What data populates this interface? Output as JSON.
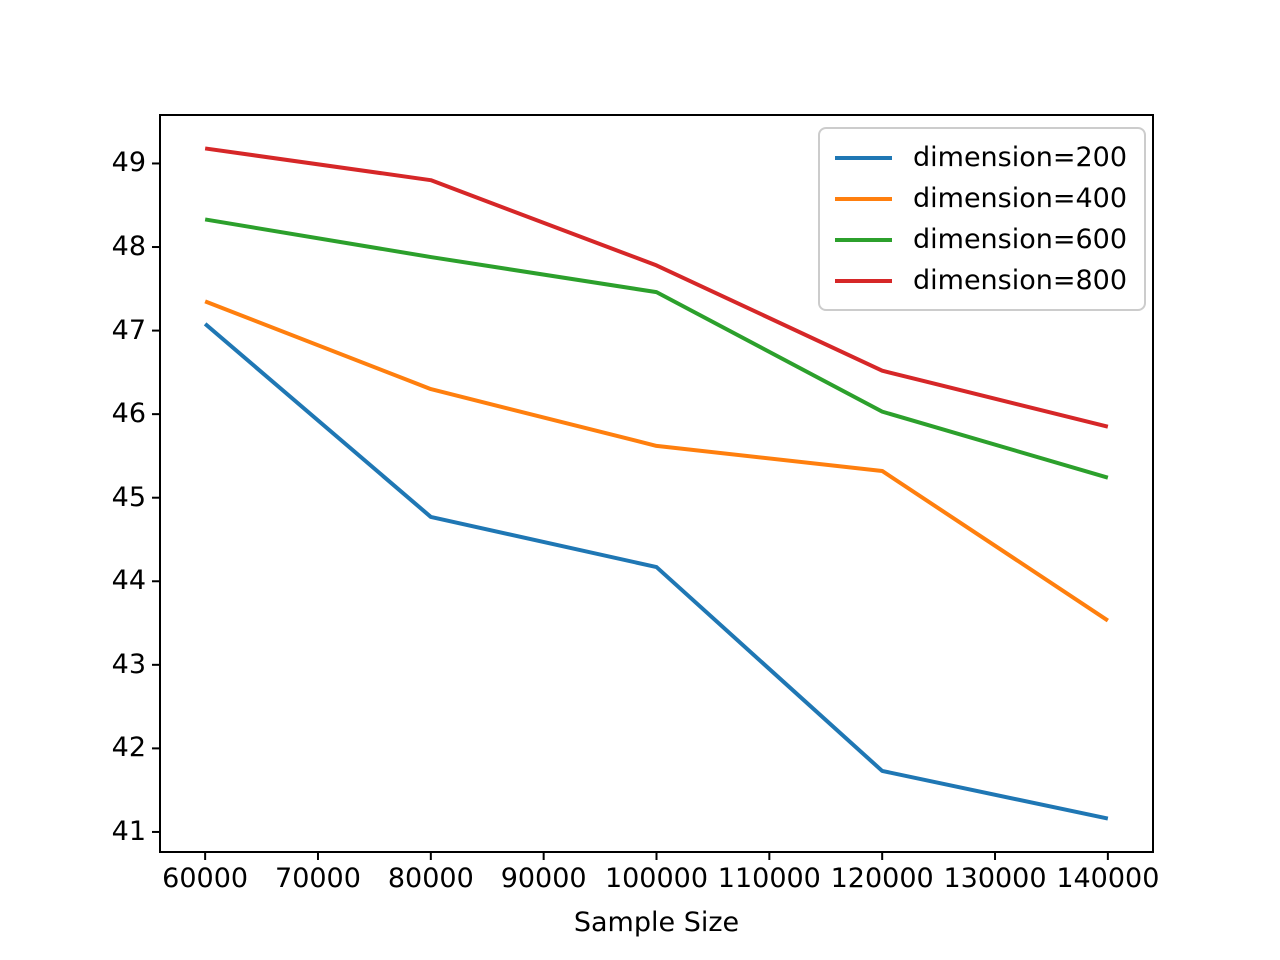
{
  "chart_data": {
    "type": "line",
    "title": "",
    "xlabel": "Sample Size",
    "ylabel": "",
    "x": [
      60000,
      80000,
      100000,
      120000,
      140000
    ],
    "series": [
      {
        "name": "dimension=200",
        "color": "#1f77b4",
        "values": [
          47.08,
          44.77,
          44.17,
          41.73,
          41.16
        ]
      },
      {
        "name": "dimension=400",
        "color": "#ff7f0e",
        "values": [
          47.35,
          46.3,
          45.62,
          45.32,
          43.53
        ]
      },
      {
        "name": "dimension=600",
        "color": "#2ca02c",
        "values": [
          48.33,
          47.88,
          47.46,
          46.03,
          45.24
        ]
      },
      {
        "name": "dimension=800",
        "color": "#d62728",
        "values": [
          49.18,
          48.8,
          47.78,
          46.52,
          45.85
        ]
      }
    ],
    "xticks": [
      60000,
      70000,
      80000,
      90000,
      100000,
      110000,
      120000,
      130000,
      140000
    ],
    "yticks": [
      41,
      42,
      43,
      44,
      45,
      46,
      47,
      48,
      49
    ],
    "xlim": [
      56000,
      144000
    ],
    "ylim": [
      40.76,
      49.58
    ],
    "grid": false,
    "legend_position": "upper right",
    "axis_color": "#000000"
  }
}
